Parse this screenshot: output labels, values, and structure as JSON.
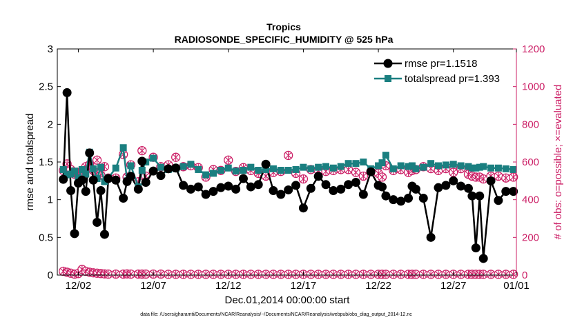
{
  "chart_data": {
    "type": "line",
    "title": "Tropics",
    "subtitle": "RADIOSONDE_SPECIFIC_HUMIDITY @ 525 hPa",
    "xlabel": "Dec.01,2014 00:00:00 start",
    "ylabel": "rmse and totalspread",
    "y2label": "# of obs: o=possible; ×=evaluated",
    "xlim": [
      0.6,
      31.2
    ],
    "ylim": [
      0,
      3
    ],
    "y2lim": [
      0,
      1200
    ],
    "x_ticks": [
      {
        "x": 2,
        "label": "12/02"
      },
      {
        "x": 7,
        "label": "12/07"
      },
      {
        "x": 12,
        "label": "12/12"
      },
      {
        "x": 17,
        "label": "12/17"
      },
      {
        "x": 22,
        "label": "12/22"
      },
      {
        "x": 27,
        "label": "12/27"
      },
      {
        "x": 32,
        "label": "01/01"
      }
    ],
    "y_ticks": [
      "0",
      "0.5",
      "1",
      "1.5",
      "2",
      "2.5",
      "3"
    ],
    "y2_ticks": [
      "0",
      "200",
      "400",
      "600",
      "800",
      "1000",
      "1200"
    ],
    "colors": {
      "rmse": "#000000",
      "spread": "#1a7f80",
      "obs": "#cc1f66"
    },
    "series": [
      {
        "name": "rmse",
        "legend": "rmse pr=1.1518",
        "x": [
          1.0,
          1.25,
          1.5,
          1.75,
          2.0,
          2.25,
          2.5,
          2.75,
          3.0,
          3.25,
          3.5,
          3.75,
          4.0,
          4.5,
          5.0,
          5.25,
          5.5,
          6.0,
          6.25,
          6.5,
          7.0,
          7.5,
          8.0,
          8.5,
          9.0,
          9.5,
          10.0,
          10.5,
          11.0,
          11.5,
          12.0,
          12.5,
          13.0,
          13.5,
          14.0,
          14.5,
          15.0,
          15.5,
          16.0,
          16.5,
          17.0,
          17.5,
          18.0,
          18.5,
          19.0,
          19.5,
          20.0,
          20.5,
          21.0,
          21.5,
          22.0,
          22.25,
          22.5,
          23.0,
          23.5,
          24.0,
          24.25,
          24.5,
          25.0,
          25.5,
          26.0,
          26.5,
          27.0,
          27.5,
          28.0,
          28.25,
          28.5,
          28.75,
          29.0,
          29.5,
          30.0,
          30.5,
          31.0
        ],
        "values": [
          1.27,
          2.42,
          1.12,
          0.55,
          1.22,
          1.26,
          1.11,
          1.62,
          1.26,
          0.7,
          1.12,
          0.54,
          1.28,
          1.26,
          1.02,
          1.24,
          1.31,
          1.14,
          1.51,
          1.23,
          1.38,
          1.32,
          1.41,
          1.42,
          1.19,
          1.14,
          1.17,
          1.07,
          1.11,
          1.16,
          1.18,
          1.14,
          1.28,
          1.17,
          1.2,
          1.47,
          1.12,
          1.07,
          1.13,
          1.19,
          0.89,
          1.15,
          1.31,
          1.2,
          1.12,
          1.14,
          1.2,
          1.23,
          1.07,
          1.37,
          1.19,
          1.17,
          1.05,
          1.0,
          0.98,
          1.02,
          1.18,
          1.14,
          1.02,
          0.5,
          1.16,
          1.19,
          1.25,
          1.18,
          1.15,
          1.05,
          0.36,
          1.05,
          0.22,
          1.25,
          0.99,
          1.11,
          1.11
        ]
      },
      {
        "name": "totalspread",
        "legend": "totalspread pr=1.393",
        "x": [
          1.0,
          1.25,
          1.5,
          1.75,
          2.0,
          2.25,
          2.5,
          2.75,
          3.0,
          3.25,
          3.5,
          3.75,
          4.0,
          4.5,
          5.0,
          5.25,
          5.5,
          6.0,
          6.25,
          6.5,
          7.0,
          7.5,
          8.0,
          8.5,
          9.0,
          9.5,
          10.0,
          10.5,
          11.0,
          11.5,
          12.0,
          12.5,
          13.0,
          13.5,
          14.0,
          14.5,
          15.0,
          15.5,
          16.0,
          16.5,
          17.0,
          17.5,
          18.0,
          18.5,
          19.0,
          19.5,
          20.0,
          20.5,
          21.0,
          21.5,
          22.0,
          22.25,
          22.5,
          23.0,
          23.5,
          24.0,
          24.25,
          24.5,
          25.0,
          25.5,
          26.0,
          26.5,
          27.0,
          27.5,
          28.0,
          28.25,
          28.5,
          28.75,
          29.0,
          29.5,
          30.0,
          30.5,
          31.0
        ],
        "values": [
          1.4,
          1.33,
          1.34,
          1.38,
          1.29,
          1.4,
          1.34,
          1.63,
          1.41,
          1.28,
          1.43,
          1.24,
          1.29,
          1.42,
          1.69,
          1.25,
          1.45,
          1.17,
          1.39,
          1.5,
          1.55,
          1.43,
          1.4,
          1.41,
          1.44,
          1.47,
          1.4,
          1.33,
          1.35,
          1.39,
          1.42,
          1.38,
          1.39,
          1.43,
          1.39,
          1.4,
          1.41,
          1.39,
          1.39,
          1.4,
          1.43,
          1.41,
          1.43,
          1.44,
          1.42,
          1.44,
          1.48,
          1.48,
          1.5,
          1.41,
          1.45,
          1.49,
          1.59,
          1.41,
          1.45,
          1.44,
          1.45,
          1.41,
          1.43,
          1.48,
          1.45,
          1.46,
          1.47,
          1.45,
          1.44,
          1.42,
          1.42,
          1.43,
          1.44,
          1.42,
          1.42,
          1.41,
          1.4
        ]
      },
      {
        "name": "obs possible",
        "x": [
          1.0,
          1.25,
          1.5,
          1.75,
          2.0,
          2.25,
          2.5,
          2.75,
          3.0,
          3.25,
          3.5,
          3.75,
          4.0,
          4.5,
          5.0,
          5.25,
          5.5,
          6.0,
          6.25,
          6.5,
          7.0,
          7.5,
          8.0,
          8.5,
          9.0,
          9.5,
          10.0,
          10.5,
          11.0,
          11.5,
          12.0,
          12.5,
          13.0,
          13.5,
          14.0,
          14.5,
          15.0,
          15.5,
          16.0,
          16.5,
          17.0,
          17.5,
          18.0,
          18.5,
          19.0,
          19.5,
          20.0,
          20.5,
          21.0,
          21.5,
          22.0,
          22.25,
          22.5,
          23.0,
          23.5,
          24.0,
          24.25,
          24.5,
          25.0,
          25.5,
          26.0,
          26.5,
          27.0,
          27.5,
          28.0,
          28.25,
          28.5,
          28.75,
          29.0,
          29.5,
          30.0,
          30.5,
          31.0
        ],
        "values": [
          555,
          590,
          560,
          535,
          545,
          520,
          575,
          585,
          555,
          610,
          530,
          575,
          515,
          515,
          640,
          520,
          585,
          495,
          660,
          525,
          625,
          575,
          585,
          625,
          575,
          580,
          570,
          520,
          560,
          555,
          610,
          550,
          570,
          555,
          540,
          525,
          545,
          550,
          635,
          540,
          510,
          560,
          555,
          550,
          555,
          560,
          560,
          545,
          525,
          550,
          540,
          520,
          580,
          555,
          560,
          545,
          555,
          560,
          575,
          565,
          555,
          565,
          545,
          565,
          535,
          525,
          520,
          520,
          510,
          525,
          525,
          515,
          520
        ]
      },
      {
        "name": "obs evaluated",
        "x": [
          1.0,
          1.25,
          1.5,
          1.75,
          2.0,
          2.25,
          2.5,
          2.75,
          3.0,
          3.25,
          3.5,
          3.75,
          4.0,
          4.5,
          5.0,
          5.25,
          5.5,
          6.0,
          6.25,
          6.5,
          7.0,
          7.5,
          8.0,
          8.5,
          9.0,
          9.5,
          10.0,
          10.5,
          11.0,
          11.5,
          12.0,
          12.5,
          13.0,
          13.5,
          14.0,
          14.5,
          15.0,
          15.5,
          16.0,
          16.5,
          17.0,
          17.5,
          18.0,
          18.5,
          19.0,
          19.5,
          20.0,
          20.5,
          21.0,
          21.5,
          22.0,
          22.25,
          22.5,
          23.0,
          23.5,
          24.0,
          24.25,
          24.5,
          25.0,
          25.5,
          26.0,
          26.5,
          27.0,
          27.5,
          28.0,
          28.25,
          28.5,
          28.75,
          29.0,
          29.5,
          30.0,
          30.5,
          31.0
        ],
        "values": [
          555,
          590,
          560,
          535,
          545,
          520,
          575,
          585,
          555,
          610,
          530,
          575,
          515,
          515,
          640,
          520,
          585,
          495,
          660,
          525,
          625,
          575,
          585,
          625,
          575,
          580,
          570,
          520,
          560,
          555,
          610,
          550,
          570,
          555,
          540,
          525,
          545,
          550,
          635,
          540,
          510,
          560,
          555,
          550,
          555,
          560,
          560,
          545,
          525,
          550,
          540,
          520,
          580,
          555,
          560,
          545,
          555,
          560,
          575,
          565,
          555,
          565,
          545,
          565,
          535,
          525,
          520,
          520,
          510,
          525,
          525,
          515,
          520
        ]
      },
      {
        "name": "obs possible (low)",
        "x": [
          1.0,
          1.25,
          1.5,
          1.75,
          2.0,
          2.25,
          2.5,
          2.75,
          3.0,
          3.25,
          3.5,
          3.75,
          4.0,
          4.5,
          5.0,
          5.25,
          5.5,
          6.0,
          6.25,
          6.5,
          7.0,
          7.5,
          8.0,
          8.5,
          9.0,
          9.5,
          10.0,
          10.5,
          11.0,
          11.5,
          12.0,
          12.5,
          13.0,
          13.5,
          14.0,
          14.5,
          15.0,
          15.5,
          16.0,
          16.5,
          17.0,
          17.5,
          18.0,
          18.5,
          19.0,
          19.5,
          20.0,
          20.5,
          21.0,
          21.5,
          22.0,
          22.25,
          22.5,
          23.0,
          23.5,
          24.0,
          24.25,
          24.5,
          25.0,
          25.5,
          26.0,
          26.5,
          27.0,
          27.5,
          28.0,
          28.25,
          28.5,
          28.75,
          29.0,
          29.5,
          30.0,
          30.5,
          31.0
        ],
        "values": [
          20,
          15,
          10,
          5,
          8,
          30,
          20,
          15,
          12,
          10,
          8,
          6,
          5,
          5,
          5,
          6,
          5,
          5,
          5,
          5,
          5,
          5,
          4,
          4,
          4,
          4,
          4,
          4,
          4,
          4,
          4,
          4,
          4,
          4,
          4,
          4,
          4,
          4,
          4,
          4,
          4,
          4,
          4,
          4,
          4,
          4,
          4,
          4,
          4,
          4,
          4,
          4,
          4,
          4,
          4,
          4,
          4,
          4,
          4,
          4,
          4,
          4,
          4,
          4,
          4,
          4,
          4,
          4,
          4,
          4,
          4,
          4,
          4
        ]
      },
      {
        "name": "obs evaluated (low)",
        "x": [
          1.0,
          1.25,
          1.5,
          1.75,
          2.0,
          2.25,
          2.5,
          2.75,
          3.0,
          3.25,
          3.5,
          3.75,
          4.0,
          4.5,
          5.0,
          5.25,
          5.5,
          6.0,
          6.25,
          6.5,
          7.0,
          7.5,
          8.0,
          8.5,
          9.0,
          9.5,
          10.0,
          10.5,
          11.0,
          11.5,
          12.0,
          12.5,
          13.0,
          13.5,
          14.0,
          14.5,
          15.0,
          15.5,
          16.0,
          16.5,
          17.0,
          17.5,
          18.0,
          18.5,
          19.0,
          19.5,
          20.0,
          20.5,
          21.0,
          21.5,
          22.0,
          22.25,
          22.5,
          23.0,
          23.5,
          24.0,
          24.25,
          24.5,
          25.0,
          25.5,
          26.0,
          26.5,
          27.0,
          27.5,
          28.0,
          28.25,
          28.5,
          28.75,
          29.0,
          29.5,
          30.0,
          30.5,
          31.0
        ],
        "values": [
          20,
          15,
          10,
          5,
          8,
          30,
          20,
          15,
          12,
          10,
          8,
          6,
          5,
          5,
          5,
          6,
          5,
          5,
          5,
          5,
          5,
          5,
          4,
          4,
          4,
          4,
          4,
          4,
          4,
          4,
          4,
          4,
          4,
          4,
          4,
          4,
          4,
          4,
          4,
          4,
          4,
          4,
          4,
          4,
          4,
          4,
          4,
          4,
          4,
          4,
          4,
          4,
          4,
          4,
          4,
          4,
          4,
          4,
          4,
          4,
          4,
          4,
          4,
          4,
          4,
          4,
          4,
          4,
          4,
          4,
          4,
          4,
          4
        ]
      }
    ],
    "legend": [
      "rmse pr=1.1518",
      "totalspread pr=1.393"
    ],
    "legend_position": "top-right",
    "footnote": "data file: /Users/gharamti/Documents/NCAR/Reanalysis/~/Documents/NCAR/Reanalysis/webpub/obs_diag_output_2014-12.nc"
  }
}
